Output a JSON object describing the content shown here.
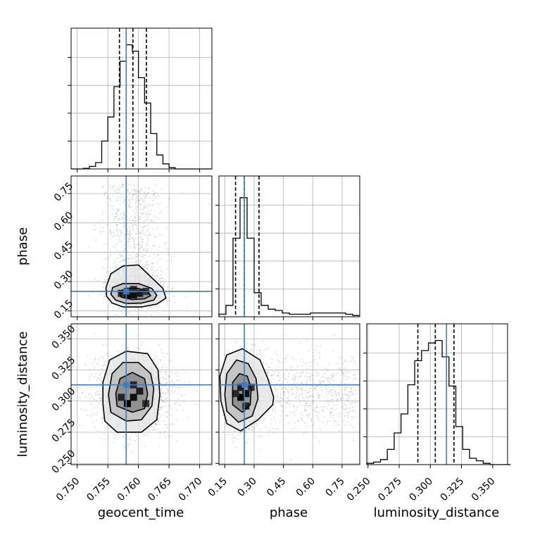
{
  "chart_data": {
    "type": "corner",
    "parameters": [
      "geocent_time",
      "phase",
      "luminosity_distance"
    ],
    "truth_color": "#3b7dbf",
    "grid": true,
    "axes": {
      "geocent_time": {
        "label": "geocent_time",
        "range": [
          0.749,
          0.772
        ],
        "ticks": [
          0.75,
          0.755,
          0.76,
          0.765,
          0.77
        ],
        "tick_labels": [
          "0.750",
          "0.755",
          "0.760",
          "0.765",
          "0.770"
        ]
      },
      "phase": {
        "label": "phase",
        "range": [
          0.12,
          0.84
        ],
        "ticks": [
          0.15,
          0.3,
          0.45,
          0.6,
          0.75
        ],
        "tick_labels": [
          "0.15",
          "0.30",
          "0.45",
          "0.60",
          "0.75"
        ]
      },
      "luminosity_distance": {
        "label": "luminosity_distance",
        "range": [
          0.249,
          0.362
        ],
        "ticks": [
          0.25,
          0.275,
          0.3,
          0.325,
          0.35
        ],
        "tick_labels": [
          "0.250",
          "0.275",
          "0.300",
          "0.325",
          "0.350"
        ]
      }
    },
    "truths": {
      "geocent_time": 0.758,
      "phase": 0.25,
      "luminosity_distance": 0.313
    },
    "quantiles": {
      "geocent_time": [
        0.7569,
        0.7591,
        0.7613
      ],
      "phase": [
        0.205,
        0.25,
        0.325
      ],
      "luminosity_distance": [
        0.29,
        0.304,
        0.319
      ]
    },
    "histograms": {
      "geocent_time": {
        "bin_edges": [
          0.749,
          0.75,
          0.751,
          0.752,
          0.753,
          0.754,
          0.755,
          0.756,
          0.757,
          0.758,
          0.759,
          0.76,
          0.761,
          0.762,
          0.763,
          0.764,
          0.765,
          0.766,
          0.767,
          0.768,
          0.769,
          0.77,
          0.771,
          0.772
        ],
        "counts": [
          0.0,
          0.0,
          0.005,
          0.02,
          0.05,
          0.22,
          0.41,
          0.65,
          0.85,
          0.98,
          0.93,
          0.72,
          0.52,
          0.28,
          0.11,
          0.04,
          0.01,
          0.0,
          0.0,
          0.0,
          0.0,
          0.0,
          0.0
        ]
      },
      "phase": {
        "bin_edges": [
          0.12,
          0.156,
          0.192,
          0.228,
          0.264,
          0.3,
          0.336,
          0.372,
          0.408,
          0.444,
          0.48,
          0.516,
          0.552,
          0.588,
          0.624,
          0.66,
          0.696,
          0.732,
          0.768,
          0.804,
          0.84
        ],
        "counts": [
          0.02,
          0.09,
          0.62,
          0.94,
          0.62,
          0.19,
          0.09,
          0.06,
          0.05,
          0.03,
          0.02,
          0.02,
          0.02,
          0.03,
          0.03,
          0.03,
          0.03,
          0.03,
          0.02,
          0.01
        ]
      },
      "luminosity_distance": {
        "bin_edges": [
          0.249,
          0.2545,
          0.26,
          0.2655,
          0.271,
          0.2765,
          0.282,
          0.2875,
          0.293,
          0.2985,
          0.304,
          0.3095,
          0.315,
          0.3205,
          0.326,
          0.3315,
          0.337,
          0.3425,
          0.348,
          0.3535,
          0.359,
          0.3645
        ],
        "counts": [
          0.01,
          0.02,
          0.04,
          0.12,
          0.25,
          0.4,
          0.63,
          0.82,
          0.9,
          0.96,
          0.98,
          0.85,
          0.62,
          0.3,
          0.12,
          0.05,
          0.03,
          0.01,
          0.0,
          0.0,
          0.0
        ]
      }
    },
    "pairs": [
      {
        "x": "geocent_time",
        "y": "phase",
        "center": [
          0.7592,
          0.245
        ],
        "spread": [
          0.0017,
          0.028
        ],
        "y_tail_to": 0.8,
        "contours": [
          [
            [
              0.7557,
              0.19
            ],
            [
              0.7575,
              0.17
            ],
            [
              0.7605,
              0.17
            ],
            [
              0.763,
              0.185
            ],
            [
              0.7645,
              0.215
            ],
            [
              0.764,
              0.265
            ],
            [
              0.7615,
              0.34
            ],
            [
              0.76,
              0.385
            ],
            [
              0.7575,
              0.38
            ],
            [
              0.7555,
              0.34
            ],
            [
              0.7547,
              0.27
            ],
            [
              0.7548,
              0.225
            ]
          ],
          [
            [
              0.7563,
              0.205
            ],
            [
              0.758,
              0.188
            ],
            [
              0.7605,
              0.19
            ],
            [
              0.7625,
              0.205
            ],
            [
              0.763,
              0.23
            ],
            [
              0.7622,
              0.265
            ],
            [
              0.76,
              0.29
            ],
            [
              0.7575,
              0.29
            ],
            [
              0.7558,
              0.27
            ],
            [
              0.7555,
              0.235
            ]
          ],
          [
            [
              0.7572,
              0.22
            ],
            [
              0.759,
              0.208
            ],
            [
              0.761,
              0.212
            ],
            [
              0.762,
              0.228
            ],
            [
              0.7615,
              0.25
            ],
            [
              0.76,
              0.265
            ],
            [
              0.758,
              0.266
            ],
            [
              0.757,
              0.25
            ]
          ]
        ],
        "dense_cells": [
          [
            0.7582,
            0.232,
            1.0
          ],
          [
            0.7592,
            0.232,
            0.85
          ],
          [
            0.7602,
            0.24,
            0.7
          ],
          [
            0.7582,
            0.25,
            0.55
          ],
          [
            0.7572,
            0.24,
            0.5
          ],
          [
            0.7612,
            0.25,
            0.4
          ],
          [
            0.7592,
            0.26,
            0.45
          ]
        ]
      },
      {
        "x": "geocent_time",
        "y": "luminosity_distance",
        "center": [
          0.7593,
          0.306
        ],
        "spread": [
          0.0022,
          0.011
        ],
        "contours": [
          [
            [
              0.7545,
              0.284
            ],
            [
              0.7565,
              0.275
            ],
            [
              0.7605,
              0.275
            ],
            [
              0.763,
              0.285
            ],
            [
              0.7635,
              0.305
            ],
            [
              0.7632,
              0.325
            ],
            [
              0.7615,
              0.338
            ],
            [
              0.758,
              0.34
            ],
            [
              0.7553,
              0.333
            ],
            [
              0.7542,
              0.315
            ],
            [
              0.7542,
              0.298
            ]
          ],
          [
            [
              0.7555,
              0.291
            ],
            [
              0.758,
              0.284
            ],
            [
              0.7605,
              0.285
            ],
            [
              0.7622,
              0.296
            ],
            [
              0.7625,
              0.31
            ],
            [
              0.762,
              0.322
            ],
            [
              0.76,
              0.331
            ],
            [
              0.7575,
              0.331
            ],
            [
              0.7557,
              0.322
            ],
            [
              0.7551,
              0.305
            ]
          ],
          [
            [
              0.7565,
              0.296
            ],
            [
              0.759,
              0.291
            ],
            [
              0.761,
              0.294
            ],
            [
              0.7615,
              0.306
            ],
            [
              0.761,
              0.318
            ],
            [
              0.759,
              0.323
            ],
            [
              0.757,
              0.318
            ],
            [
              0.7563,
              0.306
            ]
          ]
        ],
        "dense_cells": [
          [
            0.7582,
            0.298,
            1.0
          ],
          [
            0.7592,
            0.303,
            0.85
          ],
          [
            0.7602,
            0.308,
            0.7
          ],
          [
            0.7572,
            0.303,
            0.6
          ],
          [
            0.7592,
            0.313,
            0.55
          ],
          [
            0.7612,
            0.298,
            0.45
          ]
        ]
      },
      {
        "x": "phase",
        "y": "luminosity_distance",
        "center": [
          0.245,
          0.306
        ],
        "spread": [
          0.035,
          0.011
        ],
        "x_tail_to": 0.82,
        "contours": [
          [
            [
              0.13,
              0.3
            ],
            [
              0.16,
              0.282
            ],
            [
              0.23,
              0.276
            ],
            [
              0.32,
              0.285
            ],
            [
              0.395,
              0.297
            ],
            [
              0.4,
              0.303
            ],
            [
              0.37,
              0.318
            ],
            [
              0.33,
              0.333
            ],
            [
              0.24,
              0.342
            ],
            [
              0.16,
              0.337
            ],
            [
              0.125,
              0.32
            ]
          ],
          [
            [
              0.16,
              0.292
            ],
            [
              0.22,
              0.283
            ],
            [
              0.29,
              0.288
            ],
            [
              0.32,
              0.302
            ],
            [
              0.31,
              0.318
            ],
            [
              0.27,
              0.33
            ],
            [
              0.21,
              0.333
            ],
            [
              0.16,
              0.322
            ],
            [
              0.15,
              0.305
            ]
          ],
          [
            [
              0.19,
              0.297
            ],
            [
              0.24,
              0.291
            ],
            [
              0.28,
              0.297
            ],
            [
              0.285,
              0.31
            ],
            [
              0.265,
              0.32
            ],
            [
              0.225,
              0.322
            ],
            [
              0.19,
              0.315
            ]
          ]
        ],
        "dense_cells": [
          [
            0.232,
            0.303,
            1.0
          ],
          [
            0.258,
            0.306,
            0.85
          ],
          [
            0.232,
            0.311,
            0.7
          ],
          [
            0.258,
            0.296,
            0.6
          ],
          [
            0.205,
            0.306,
            0.55
          ],
          [
            0.285,
            0.311,
            0.4
          ]
        ]
      }
    ]
  }
}
